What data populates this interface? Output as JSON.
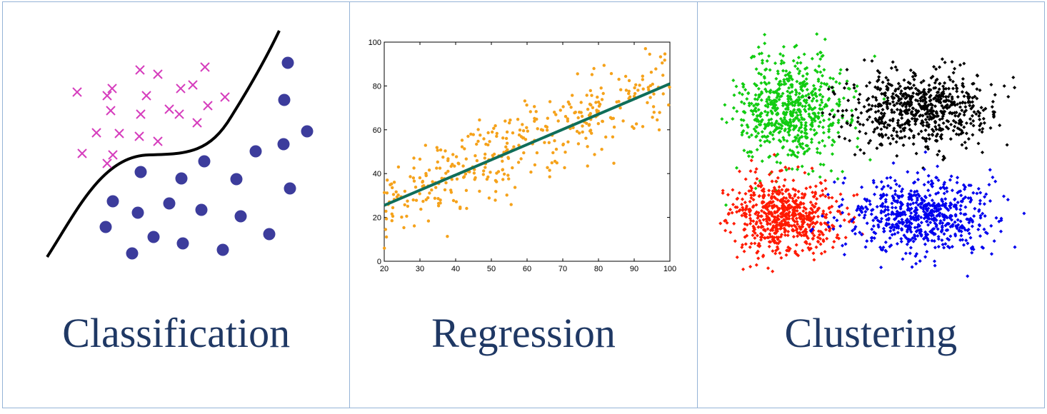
{
  "panels": {
    "classification": {
      "label": "Classification",
      "colors": {
        "cross": "#d63ebd",
        "dot": "#3c3c9c",
        "curve": "#000000"
      }
    },
    "regression": {
      "label": "Regression",
      "colors": {
        "points": "#f5a21b",
        "line": "#0f6e5a"
      }
    },
    "clustering": {
      "label": "Clustering",
      "colors": {
        "green": "#11cc11",
        "black": "#000000",
        "red": "#ff1a00",
        "blue": "#0000ee"
      }
    }
  },
  "chart_data": {
    "type": "scatter",
    "xlim": [
      20,
      100
    ],
    "ylim": [
      0,
      100
    ],
    "x_ticks": [
      20,
      30,
      40,
      50,
      60,
      70,
      80,
      90,
      100
    ],
    "y_ticks": [
      0,
      20,
      40,
      60,
      80,
      100
    ],
    "regression_line": {
      "x": [
        20,
        100
      ],
      "y": [
        25.5,
        81
      ]
    }
  }
}
